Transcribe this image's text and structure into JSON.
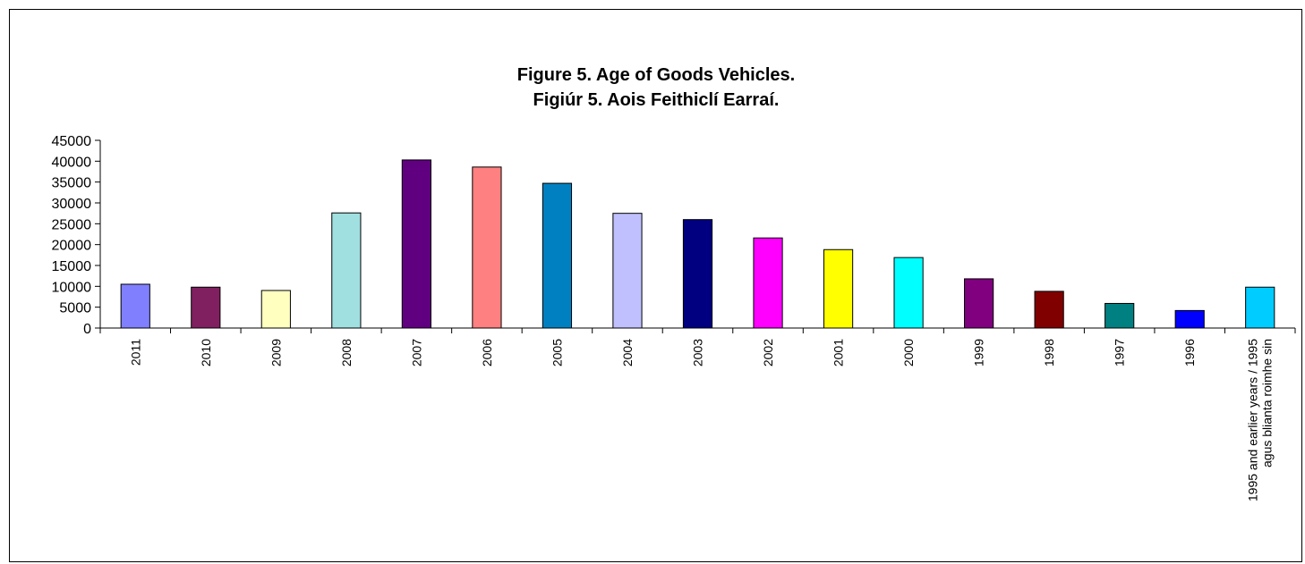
{
  "chart_data": {
    "type": "bar",
    "title_lines": [
      "Figure 5. Age of Goods Vehicles.",
      "Figiúr 5. Aois Feithiclí Earraí."
    ],
    "xlabel": "",
    "ylabel": "",
    "ylim": [
      0,
      45000
    ],
    "yticks": [
      0,
      5000,
      10000,
      15000,
      20000,
      25000,
      30000,
      35000,
      40000,
      45000
    ],
    "grid": false,
    "legend": "none",
    "categories": [
      [
        "2011"
      ],
      [
        "2010"
      ],
      [
        "2009"
      ],
      [
        "2008"
      ],
      [
        "2007"
      ],
      [
        "2006"
      ],
      [
        "2005"
      ],
      [
        "2004"
      ],
      [
        "2003"
      ],
      [
        "2002"
      ],
      [
        "2001"
      ],
      [
        "2000"
      ],
      [
        "1999"
      ],
      [
        "1998"
      ],
      [
        "1997"
      ],
      [
        "1996"
      ],
      [
        "1995 and earlier years / 1995",
        "agus blianta roimhe sin"
      ]
    ],
    "values": [
      10500,
      9800,
      9000,
      27600,
      40300,
      38600,
      34700,
      27500,
      26000,
      21600,
      18800,
      16900,
      11800,
      8800,
      5900,
      4200,
      9800
    ],
    "colors": [
      "#8080FF",
      "#802060",
      "#FFFFC0",
      "#A0E0E0",
      "#600080",
      "#FF8080",
      "#0080C0",
      "#C0C0FF",
      "#000080",
      "#FF00FF",
      "#FFFF00",
      "#00FFFF",
      "#800080",
      "#800000",
      "#008080",
      "#0000FF",
      "#00CCFF"
    ]
  }
}
